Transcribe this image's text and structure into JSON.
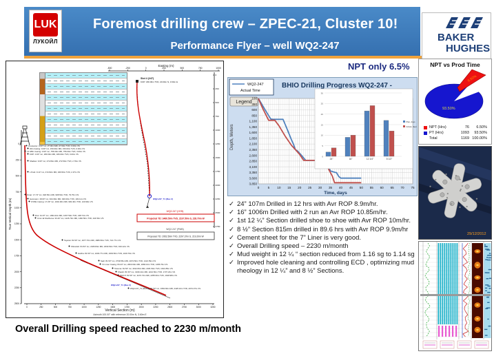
{
  "header": {
    "title": "Foremost drilling crew – ZPEC-21, Cluster 10!",
    "subtitle": "Performance Flyer – well WQ2-247",
    "lukoil_symbol": "LUK",
    "lukoil_wordmark": "ЛУКОЙЛ",
    "baker_hughes_line1": "BAKER",
    "baker_hughes_line2": "HUGHES",
    "banner_blue": "#3d7bbd",
    "underline_orange": "#efa33d"
  },
  "npt_note": "NPT only 6.5%",
  "bottom_statement": "Overall Drilling speed reached to 2230 m/month",
  "bullets": [
    "24” 107m Drilled in 12 hrs with  Avr ROP 8.9m/hr.",
    "16” 1006m Drilled with 2 run an Avr ROP 10.85m/hr.",
    "1st 12 ¼” Section drilled shoe to shoe with Avr ROP 10m/hr.",
    " 8 ½” Section 815m drilled in 89.6 hrs with Avr ROP 9.9m/hr",
    "Cement sheet for the 7” Liner is very good.",
    "Overall Drilling speed – 2230 m/month",
    "Mud weight in 12 ¼ “ section reduced from 1.16 sg to 1.14 sg",
    "Improved hole cleaning and controlling ECD , optimizing mud rheology in 12 ¼” and 8 ½” Sections."
  ],
  "trajectory_panel": {
    "easting_axis": {
      "label": "Easting (m)",
      "ticks": [
        "-500",
        "-250",
        "0",
        "250",
        "500",
        "750",
        "1000"
      ]
    },
    "northing_axis": {
      "label": "Northing (m)",
      "ticks": [
        "0",
        "250",
        "500",
        "750",
        "1000",
        "1250",
        "1500",
        "1750",
        "2000",
        "2250",
        "2500",
        "2750"
      ]
    },
    "tvd_axis": {
      "label": "True Vertical Depth (m)",
      "ticks": [
        "0",
        "250",
        "500",
        "750",
        "1000",
        "1250",
        "1500",
        "1750",
        "2000",
        "2250",
        "2500"
      ]
    },
    "vs_axis": {
      "label": "Vertical Section (m)",
      "ticks": [
        "0",
        "250",
        "500",
        "750",
        "1000",
        "1250",
        "1500",
        "1750",
        "2000",
        "2250",
        "2500",
        "2750",
        "3000",
        "3250"
      ],
      "footnote": "Azimuth 100.00° with reference 20.00m N, 3.60m E"
    },
    "slot_label": "Slot 4 (247)",
    "kop_label": "KOP: 180.00m TVD, 20.00m N, 3.60m E",
    "rev_label_blue": "WQ2-247_T1 (Rev 2)",
    "hyb_label": "WQ2-247 (HYB)",
    "projected_td": "Projected TD: 3460.50m TVD, 2197.50m S, 228.70m W",
    "pwb_label": "WQ2-247 (PWB)",
    "proposed_td": "Proposed TD: 2952.50m TVD, 2297.37m S, 219.20m W",
    "casing_table_rows": 13,
    "annotations": [
      "Conductor: 0.00° inc, 27.00m MD, 27.00m TVD, 0.00m VS",
      "20in Casing: 0.00° inc, 150.00m MD, 150.00m TVD, 0.00m VS",
      "13 3/8in Casing: 0.60° inc, 756.00m MD, 756.00m TVD, 3.09m VS",
      "KOP: 0.00° inc, 180.00m MD, 180.00m TVD, 0.00m VS",
      "Shallow: 9.00° inc, 272.84m MD, 272.50m TVD, 2.79m VS",
      "L Park: 9.14° inc, 472.82m MD, 469.50m TVD, 2.37m VS",
      "Omar: 17.74° inc, 918.50m MD, 908.50m TVD, 79.75m VS",
      "Gammam: 18.00° inc, 944.39m MD, 940.00m TVD, 103.11m VS",
      "9 5/8in Casing: 17.29° inc, 1004.00m MD, 993.46m TVD, 120.99m VS",
      "Rus: 31.97° inc, 1094.42m MD, 1067.50m TVD, 228.74m VS",
      "Umm Er Radhuma: 33.40° inc, 1226.70m MD, 1182.50m TVD, 244.50m VS",
      "Tayarat: 81.53° inc, 1977.70m MD, 1689.50m TVD, 721.77m VS",
      "Shiranish: 81.53° inc, 2180.84m MD, 1833.50m TVD, 919.12m VS",
      "Hartha: 81.53° inc, 2403.77m MD, 1903.50m TVD, 1139.79m VS",
      "Sadi: 81.53° inc, 2739.55m MD, 2072.50m TVD, 1421.59m VS",
      "7in Liner Casing: 84.23° inc, 2823.00m MD, 2084.10m TVD, 1465.76m VS",
      "Tanuma: 81.53° inc, 3012.84m MD, 2181.50m TVD, 1641.85m VS",
      "Khasib: 81.53° inc, 3109.10m MD, 2221.50m TVD, 1737.23m VS",
      "Mishrif: 81.53° inc, 3272.72m MD, 2255.60m TVD, 1918.98m VS",
      "WQ2-247_T1 (Rev 2): 81.53° inc, 3354.84m MD, 2425.10m TVD, 2074.37m VS"
    ]
  },
  "chart_data": [
    {
      "id": "progress",
      "type": "line",
      "title": "BHIO Drilling Progress WQ2-247  -",
      "xlabel": "Time, days",
      "ylabel": "Depth, Meters",
      "legend_box": [
        "WQ2-247",
        "Actual Time"
      ],
      "legend_button": "Legend",
      "xlim": [
        0,
        75
      ],
      "ylim_depth": [
        100,
        3850
      ],
      "x_ticks": [
        0,
        5,
        10,
        15,
        20,
        25,
        30,
        35,
        40,
        45,
        50,
        55,
        60,
        65,
        70,
        75
      ],
      "y_ticks": [
        "100",
        "350",
        "600",
        "850",
        "1,100",
        "1,350",
        "1,600",
        "1,850",
        "2,100",
        "2,350",
        "2,600",
        "2,850",
        "3,100",
        "3,350",
        "3,600",
        "3,850"
      ],
      "series": [
        {
          "name": "WQ2-247 Actual Time",
          "color": "#4f81bd",
          "points": [
            [
              0,
              100
            ],
            [
              1,
              250
            ],
            [
              3,
              560
            ],
            [
              6,
              1000
            ],
            [
              7,
              1015
            ],
            [
              12,
              1015
            ],
            [
              14,
              1450
            ],
            [
              16,
              1900
            ],
            [
              17,
              2100
            ],
            [
              18,
              2350
            ],
            [
              19,
              2400
            ],
            [
              21,
              2600
            ],
            [
              23,
              2820
            ],
            [
              32,
              2820
            ],
            [
              34,
              3100
            ],
            [
              35,
              3280
            ],
            [
              37,
              3340
            ],
            [
              38,
              3360
            ],
            [
              39,
              3520
            ],
            [
              40,
              3600
            ],
            [
              50,
              3600
            ]
          ]
        },
        {
          "name": "Plan",
          "color": "#c0504d",
          "points": [
            [
              0,
              100
            ],
            [
              2,
              520
            ],
            [
              5,
              1060
            ],
            [
              8,
              1060
            ],
            [
              10,
              1300
            ],
            [
              13,
              1750
            ],
            [
              16,
              2150
            ],
            [
              18,
              2350
            ],
            [
              20,
              2550
            ],
            [
              22,
              2820
            ],
            [
              32,
              2820
            ],
            [
              34,
              3180
            ],
            [
              36,
              3520
            ],
            [
              37,
              3800
            ],
            [
              50,
              3800
            ]
          ]
        }
      ]
    },
    {
      "id": "sections",
      "type": "bar",
      "categories": [
        "24\"",
        "16\"",
        "12 1/4\"",
        "8 1/2\""
      ],
      "series": [
        {
          "name": "Plan, days",
          "color": "#4f81bd",
          "values": [
            2,
            9,
            21.5,
            17
          ]
        },
        {
          "name": "Actual, days",
          "color": "#c0504d",
          "values": [
            4,
            10,
            24,
            12
          ]
        }
      ],
      "ylim": [
        0,
        30
      ],
      "y_ticks": [
        0,
        5,
        10,
        15,
        20,
        25,
        30
      ]
    },
    {
      "id": "npt_pie",
      "type": "pie",
      "title": "NPT vs Prod Time",
      "slices": [
        {
          "label": "NPT (Hrs)",
          "hours": "76",
          "pct": "6.50%",
          "color": "#ee1111"
        },
        {
          "label": "PT (Hrs)",
          "hours": "1093",
          "pct": "93.50%",
          "color": "#1616cf"
        }
      ],
      "total_row": {
        "label": "Total",
        "hours": "1169",
        "pct": "100.00%"
      },
      "label_inside": "93.50%",
      "label_slice": "6.50%"
    }
  ],
  "bit_photo": {
    "timestamp": "29/12/2012"
  }
}
